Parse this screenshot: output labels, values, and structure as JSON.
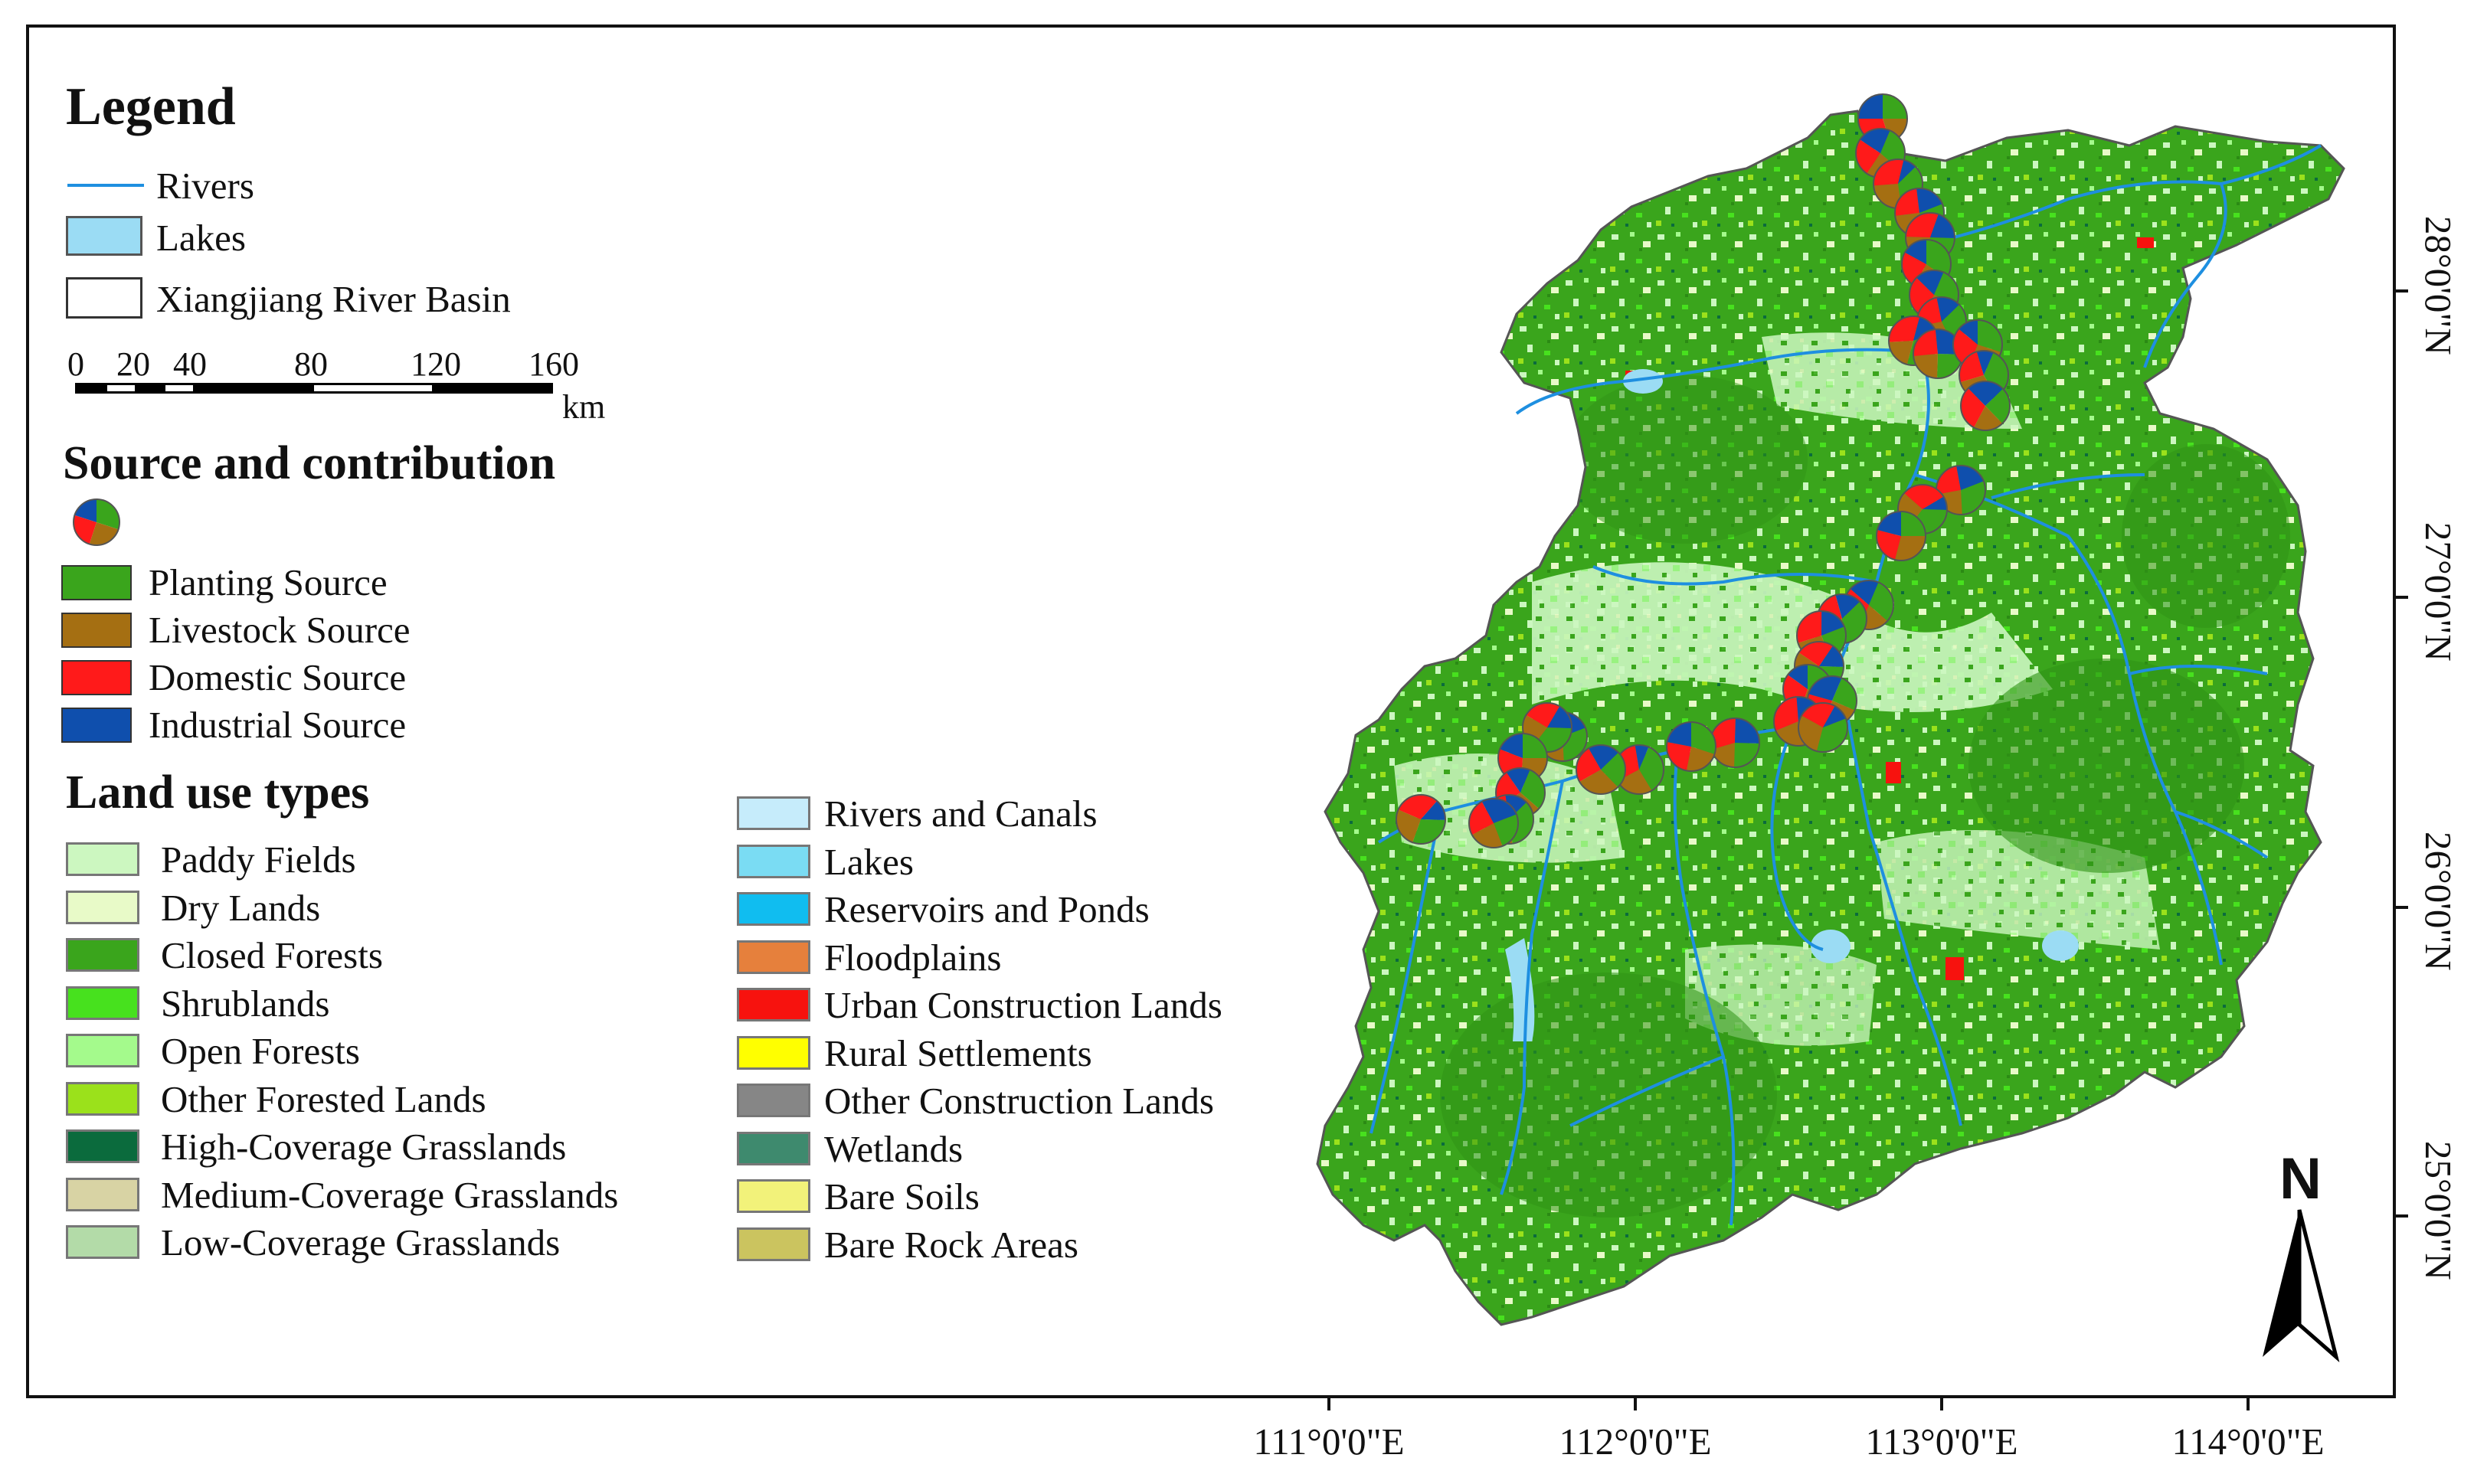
{
  "legend": {
    "title": "Legend",
    "items": [
      {
        "label": "Rivers",
        "color": "#1e8fe0"
      },
      {
        "label": "Lakes",
        "color": "#9bdcf4"
      },
      {
        "label": "Xiangjiang River Basin",
        "color": "#ffffff"
      }
    ],
    "scalebar": {
      "ticks": [
        "0",
        "20",
        "40",
        "80",
        "120",
        "160"
      ],
      "unit": "km"
    }
  },
  "sources": {
    "title": "Source and contribution",
    "items": [
      {
        "label": "Planting Source",
        "color": "#3aa51c"
      },
      {
        "label": "Livestock Source",
        "color": "#a56f12"
      },
      {
        "label": "Domestic Source",
        "color": "#ff1a1a"
      },
      {
        "label": "Industrial Source",
        "color": "#0f4fad"
      }
    ]
  },
  "landuse": {
    "title": "Land use types",
    "col1": [
      {
        "label": "Paddy Fields",
        "color": "#ccf7c0"
      },
      {
        "label": "Dry Lands",
        "color": "#e8fac8"
      },
      {
        "label": "Closed Forests",
        "color": "#3aa51c"
      },
      {
        "label": "Shrublands",
        "color": "#47e11e"
      },
      {
        "label": "Open Forests",
        "color": "#a4fa8c"
      },
      {
        "label": "Other Forested Lands",
        "color": "#9be11b"
      },
      {
        "label": "High-Coverage Grasslands",
        "color": "#0b6b3d"
      },
      {
        "label": "Medium-Coverage Grasslands",
        "color": "#d8d3a4"
      },
      {
        "label": "Low-Coverage Grasslands",
        "color": "#b3dba8"
      }
    ],
    "col2": [
      {
        "label": "Rivers and Canals",
        "color": "#c6ecfb"
      },
      {
        "label": "Lakes",
        "color": "#7adcf3"
      },
      {
        "label": "Reservoirs and Ponds",
        "color": "#10bdf0"
      },
      {
        "label": "Floodplains",
        "color": "#e6803c"
      },
      {
        "label": "Urban Construction Lands",
        "color": "#f7120e"
      },
      {
        "label": "Rural Settlements",
        "color": "#ffff00"
      },
      {
        "label": "Other Construction Lands",
        "color": "#868686"
      },
      {
        "label": "Wetlands",
        "color": "#3e8a6e"
      },
      {
        "label": "Bare Soils",
        "color": "#f2f27a"
      },
      {
        "label": "Bare Rock Areas",
        "color": "#cbc45f"
      }
    ]
  },
  "axes": {
    "longitude": [
      "111°0'0\"E",
      "112°0'0\"E",
      "113°0'0\"E",
      "114°0'0\"E"
    ],
    "latitude": [
      "28°0'0\"N",
      "27°0'0\"N",
      "26°0'0\"N",
      "25°0'0\"N"
    ]
  },
  "north_arrow": {
    "label": "N"
  },
  "pie_chart_sites": {
    "count": 30,
    "slice_colors": [
      "#3aa51c",
      "#a56f12",
      "#ff1a1a",
      "#0f4fad"
    ]
  }
}
